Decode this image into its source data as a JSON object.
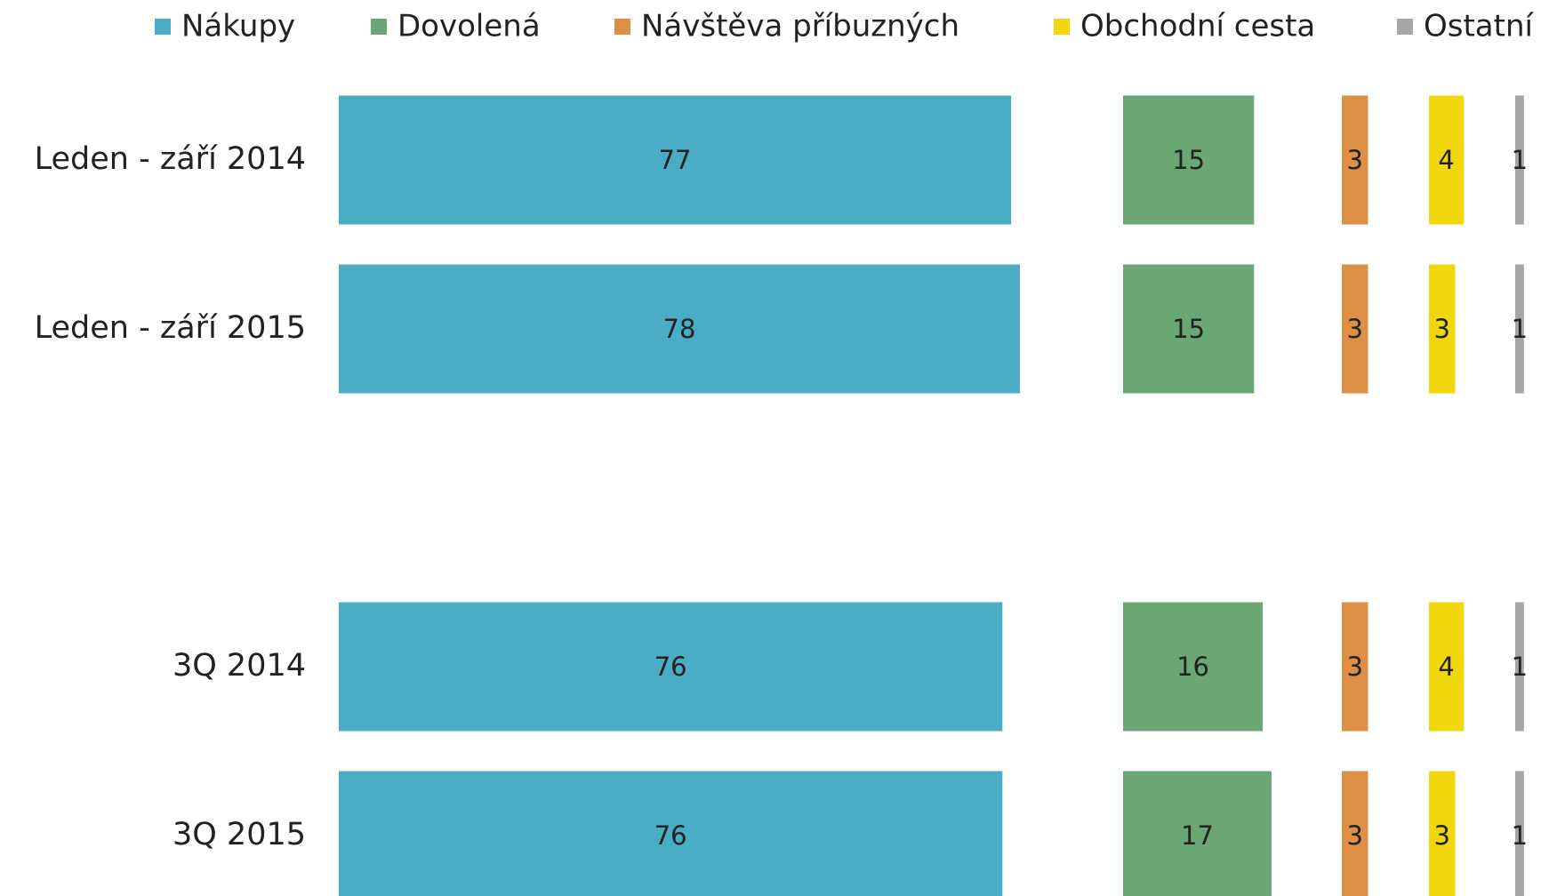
{
  "chart_data": {
    "type": "bar",
    "orientation": "horizontal",
    "layout": "panels",
    "categories": [
      "Leden - září 2014",
      "Leden - září 2015",
      null,
      "3Q 2014",
      "3Q 2015"
    ],
    "series": [
      {
        "name": "Nákupy",
        "color": "#4bacc6",
        "values": [
          77,
          78,
          null,
          76,
          76
        ]
      },
      {
        "name": "Dovolená",
        "color": "#6aa775",
        "values": [
          15,
          15,
          null,
          16,
          17
        ]
      },
      {
        "name": "Návštěva příbuzných",
        "color": "#dc8f45",
        "values": [
          3,
          3,
          null,
          3,
          3
        ]
      },
      {
        "name": "Obchodní cesta",
        "color": "#f2d70c",
        "values": [
          4,
          3,
          null,
          4,
          3
        ]
      },
      {
        "name": "Ostatní",
        "color": "#a6a6a6",
        "values": [
          1,
          1,
          null,
          1,
          1
        ]
      }
    ],
    "legend": "top"
  }
}
